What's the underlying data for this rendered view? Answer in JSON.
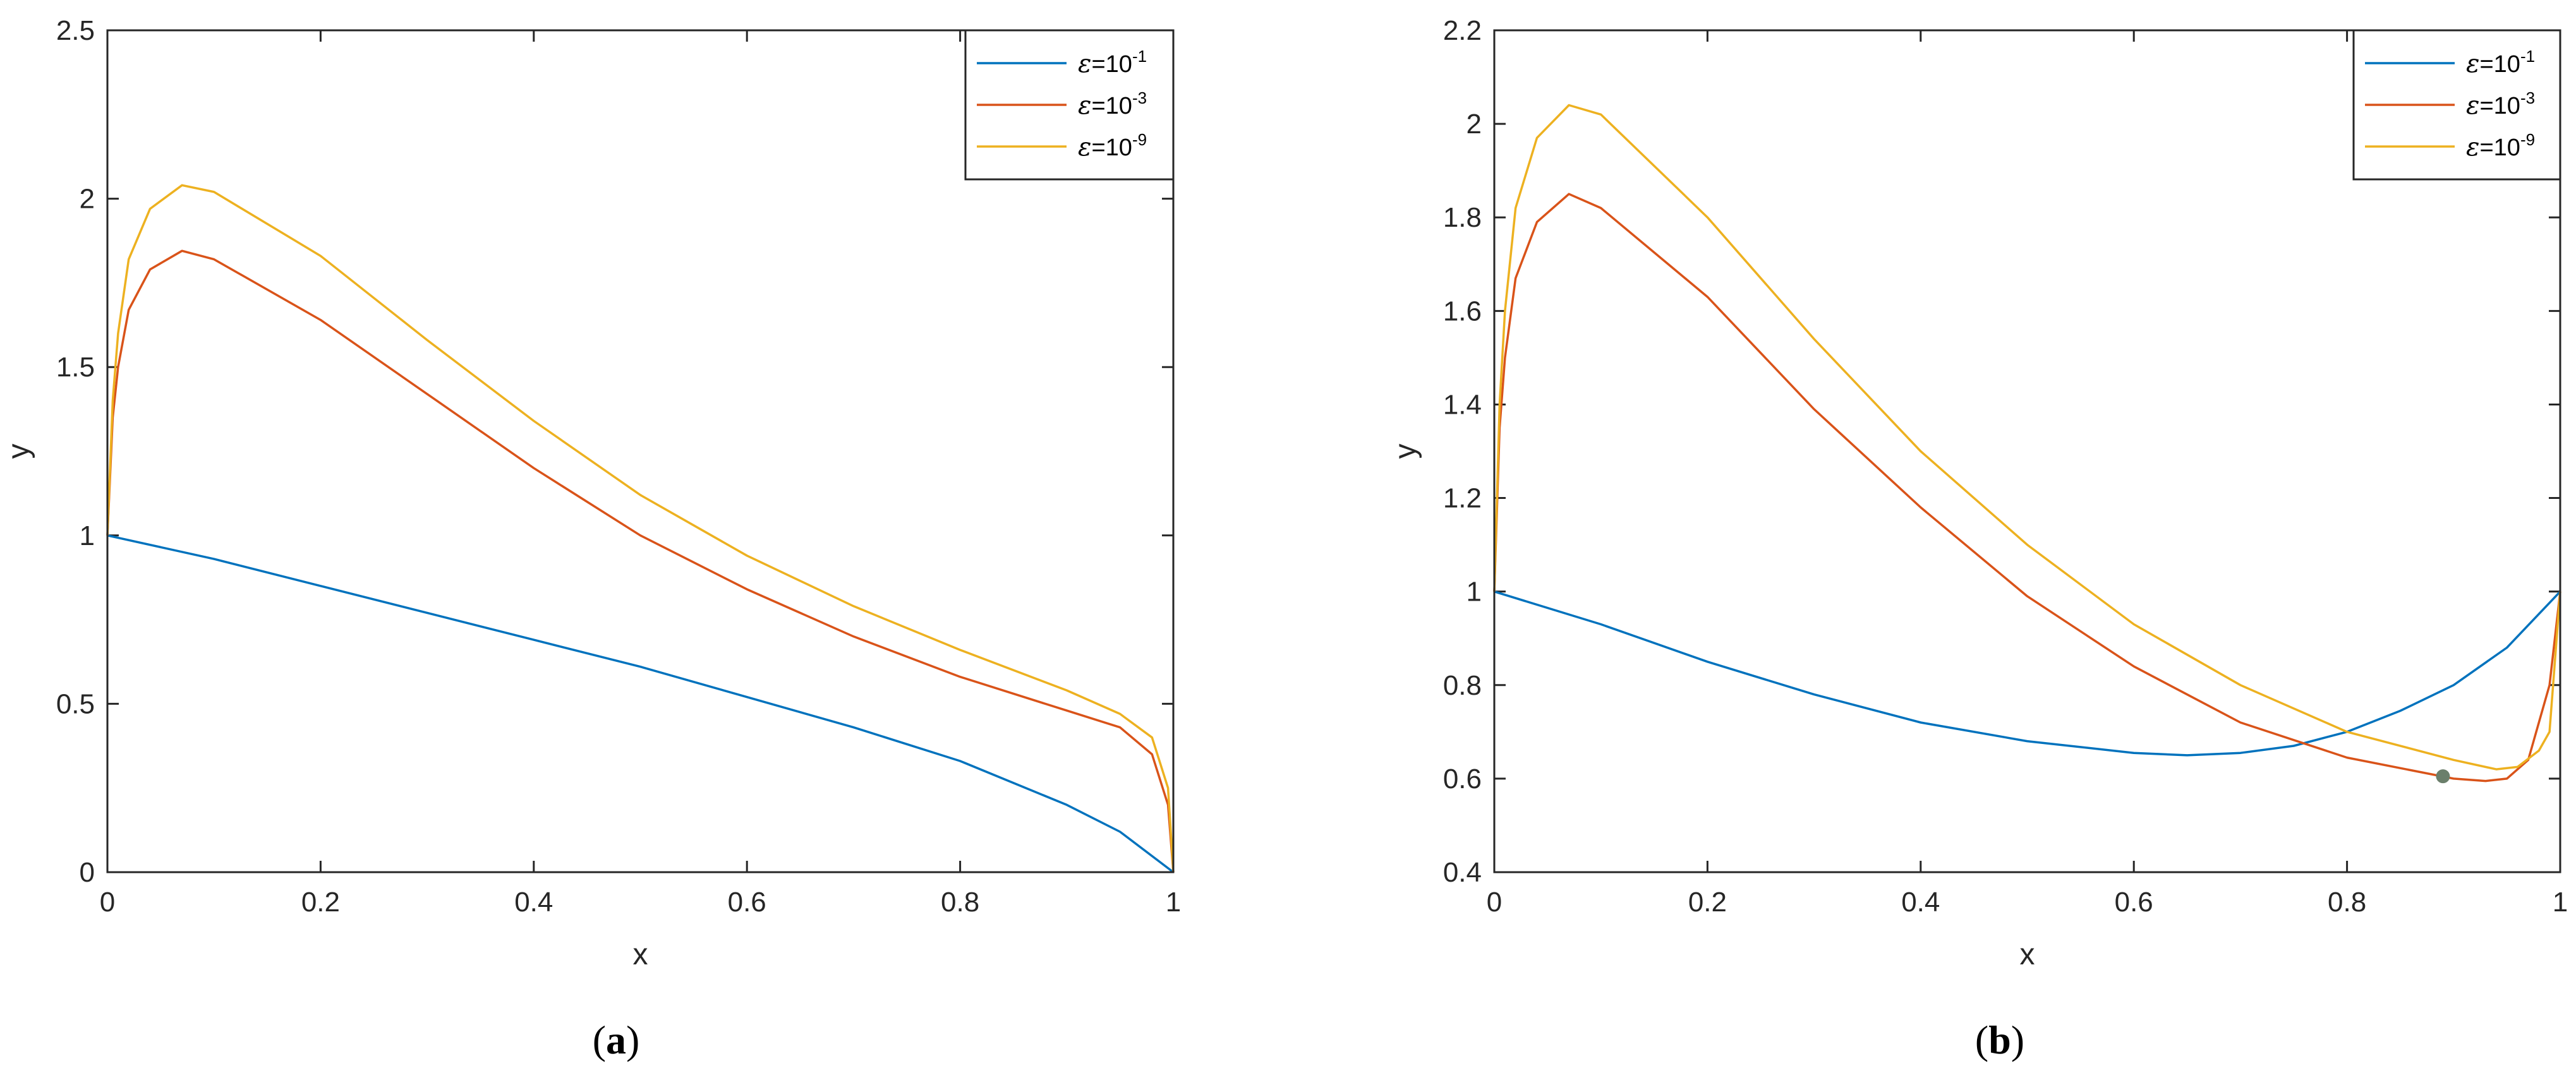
{
  "chart_data": [
    {
      "type": "line",
      "panel": "a",
      "xlabel": "x",
      "ylabel": "y",
      "xlim": [
        0,
        1
      ],
      "ylim": [
        0,
        2.5
      ],
      "x_ticks": [
        "0",
        "0.2",
        "0.4",
        "0.6",
        "0.8",
        "1"
      ],
      "y_ticks": [
        "0",
        "0.5",
        "1",
        "1.5",
        "2",
        "2.5"
      ],
      "legend_position": "top-right",
      "grid": false,
      "series": [
        {
          "name": "ε=10⁻¹",
          "eps_base": "10",
          "eps_exp": "-1",
          "color": "#0072BD",
          "points": [
            [
              0,
              1
            ],
            [
              0.1,
              0.93
            ],
            [
              0.2,
              0.85
            ],
            [
              0.3,
              0.77
            ],
            [
              0.4,
              0.69
            ],
            [
              0.5,
              0.61
            ],
            [
              0.6,
              0.52
            ],
            [
              0.7,
              0.43
            ],
            [
              0.8,
              0.33
            ],
            [
              0.9,
              0.2
            ],
            [
              0.95,
              0.12
            ],
            [
              1,
              0
            ]
          ]
        },
        {
          "name": "ε=10⁻³",
          "eps_base": "10",
          "eps_exp": "-3",
          "color": "#D95319",
          "points": [
            [
              0,
              1
            ],
            [
              0.005,
              1.35
            ],
            [
              0.01,
              1.5
            ],
            [
              0.02,
              1.67
            ],
            [
              0.04,
              1.79
            ],
            [
              0.07,
              1.845
            ],
            [
              0.1,
              1.82
            ],
            [
              0.2,
              1.64
            ],
            [
              0.3,
              1.42
            ],
            [
              0.4,
              1.2
            ],
            [
              0.5,
              1.0
            ],
            [
              0.6,
              0.84
            ],
            [
              0.7,
              0.7
            ],
            [
              0.8,
              0.58
            ],
            [
              0.9,
              0.48
            ],
            [
              0.95,
              0.43
            ],
            [
              0.98,
              0.35
            ],
            [
              0.995,
              0.2
            ],
            [
              1,
              0
            ]
          ]
        },
        {
          "name": "ε=10⁻⁹",
          "eps_base": "10",
          "eps_exp": "-9",
          "color": "#EDB120",
          "points": [
            [
              0,
              1
            ],
            [
              0.005,
              1.4
            ],
            [
              0.01,
              1.6
            ],
            [
              0.02,
              1.82
            ],
            [
              0.04,
              1.97
            ],
            [
              0.07,
              2.04
            ],
            [
              0.1,
              2.02
            ],
            [
              0.2,
              1.83
            ],
            [
              0.3,
              1.58
            ],
            [
              0.4,
              1.34
            ],
            [
              0.5,
              1.12
            ],
            [
              0.6,
              0.94
            ],
            [
              0.7,
              0.79
            ],
            [
              0.8,
              0.66
            ],
            [
              0.9,
              0.54
            ],
            [
              0.95,
              0.47
            ],
            [
              0.98,
              0.4
            ],
            [
              0.995,
              0.25
            ],
            [
              1,
              0
            ]
          ]
        }
      ]
    },
    {
      "type": "line",
      "panel": "b",
      "xlabel": "x",
      "ylabel": "y",
      "xlim": [
        0,
        1
      ],
      "ylim": [
        0.4,
        2.2
      ],
      "x_ticks": [
        "0",
        "0.2",
        "0.4",
        "0.6",
        "0.8",
        "1"
      ],
      "y_ticks": [
        "0.4",
        "0.6",
        "0.8",
        "1",
        "1.2",
        "1.4",
        "1.6",
        "1.8",
        "2",
        "2.2"
      ],
      "legend_position": "top-right",
      "grid": false,
      "marker": {
        "x": 0.89,
        "y": 0.605,
        "color": "#6B7F6B"
      },
      "series": [
        {
          "name": "ε=10⁻¹",
          "eps_base": "10",
          "eps_exp": "-1",
          "color": "#0072BD",
          "points": [
            [
              0,
              1
            ],
            [
              0.1,
              0.93
            ],
            [
              0.2,
              0.85
            ],
            [
              0.3,
              0.78
            ],
            [
              0.4,
              0.72
            ],
            [
              0.5,
              0.68
            ],
            [
              0.6,
              0.655
            ],
            [
              0.65,
              0.65
            ],
            [
              0.7,
              0.655
            ],
            [
              0.75,
              0.67
            ],
            [
              0.8,
              0.7
            ],
            [
              0.85,
              0.745
            ],
            [
              0.9,
              0.8
            ],
            [
              0.95,
              0.88
            ],
            [
              1,
              1
            ]
          ]
        },
        {
          "name": "ε=10⁻³",
          "eps_base": "10",
          "eps_exp": "-3",
          "color": "#D95319",
          "points": [
            [
              0,
              1
            ],
            [
              0.005,
              1.35
            ],
            [
              0.01,
              1.5
            ],
            [
              0.02,
              1.67
            ],
            [
              0.04,
              1.79
            ],
            [
              0.07,
              1.85
            ],
            [
              0.1,
              1.82
            ],
            [
              0.2,
              1.63
            ],
            [
              0.3,
              1.39
            ],
            [
              0.4,
              1.18
            ],
            [
              0.5,
              0.99
            ],
            [
              0.6,
              0.84
            ],
            [
              0.7,
              0.72
            ],
            [
              0.8,
              0.645
            ],
            [
              0.9,
              0.6
            ],
            [
              0.93,
              0.595
            ],
            [
              0.95,
              0.6
            ],
            [
              0.97,
              0.64
            ],
            [
              0.99,
              0.8
            ],
            [
              1,
              1
            ]
          ]
        },
        {
          "name": "ε=10⁻⁹",
          "eps_base": "10",
          "eps_exp": "-9",
          "color": "#EDB120",
          "points": [
            [
              0,
              1
            ],
            [
              0.005,
              1.4
            ],
            [
              0.01,
              1.6
            ],
            [
              0.02,
              1.82
            ],
            [
              0.04,
              1.97
            ],
            [
              0.07,
              2.04
            ],
            [
              0.1,
              2.02
            ],
            [
              0.2,
              1.8
            ],
            [
              0.3,
              1.54
            ],
            [
              0.4,
              1.3
            ],
            [
              0.5,
              1.1
            ],
            [
              0.6,
              0.93
            ],
            [
              0.7,
              0.8
            ],
            [
              0.8,
              0.7
            ],
            [
              0.9,
              0.64
            ],
            [
              0.94,
              0.62
            ],
            [
              0.96,
              0.625
            ],
            [
              0.98,
              0.66
            ],
            [
              0.99,
              0.7
            ],
            [
              1,
              1
            ]
          ]
        }
      ]
    }
  ],
  "captions": {
    "panel_a": "a",
    "panel_b": "b"
  }
}
